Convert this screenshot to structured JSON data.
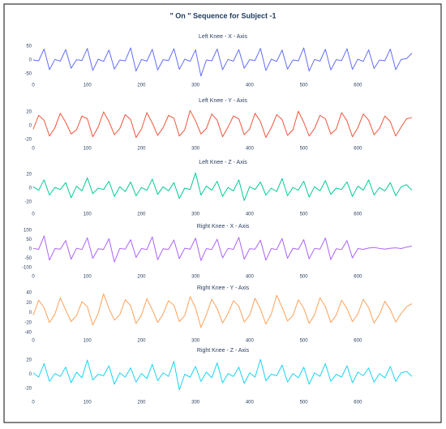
{
  "title": "\" On \" Sequence for Subject -1",
  "chart_data": [
    {
      "type": "line",
      "title": "Left Knee - X - Axis",
      "x": [
        0,
        10,
        20,
        30,
        40,
        50,
        60,
        70,
        80,
        90,
        100,
        110,
        120,
        130,
        140,
        150,
        160,
        170,
        180,
        190,
        200,
        210,
        220,
        230,
        240,
        250,
        260,
        270,
        280,
        290,
        300,
        310,
        320,
        330,
        340,
        350,
        360,
        370,
        380,
        390,
        400,
        410,
        420,
        430,
        440,
        450,
        460,
        470,
        480,
        490,
        500,
        510,
        520,
        530,
        540,
        550,
        560,
        570,
        580,
        590,
        600,
        610,
        620,
        630,
        640,
        650,
        660,
        670,
        680,
        690,
        700
      ],
      "series": [
        {
          "color": "#636efa",
          "values": [
            0,
            -3,
            40,
            -35,
            2,
            -4,
            38,
            -30,
            1,
            -2,
            42,
            -38,
            3,
            -5,
            36,
            -33,
            0,
            -3,
            44,
            -40,
            2,
            -4,
            39,
            -36,
            1,
            -2,
            41,
            -34,
            3,
            -5,
            37,
            -58,
            0,
            -3,
            40,
            -35,
            2,
            -4,
            38,
            -30,
            1,
            -2,
            42,
            -38,
            3,
            -5,
            36,
            -33,
            0,
            -3,
            44,
            -40,
            2,
            -4,
            39,
            -36,
            1,
            -2,
            41,
            -34,
            3,
            -5,
            37,
            -31,
            0,
            -3,
            40,
            -35,
            2,
            5,
            25
          ]
        }
      ],
      "xlim": [
        0,
        700
      ],
      "ylim": [
        -60,
        60
      ],
      "xticks": [
        0,
        100,
        200,
        300,
        400,
        500,
        600
      ],
      "yticks": [
        50,
        0,
        -50
      ]
    },
    {
      "type": "line",
      "title": "Left Knee - Y - Axis",
      "x": [
        0,
        10,
        20,
        30,
        40,
        50,
        60,
        70,
        80,
        90,
        100,
        110,
        120,
        130,
        140,
        150,
        160,
        170,
        180,
        190,
        200,
        210,
        220,
        230,
        240,
        250,
        260,
        270,
        280,
        290,
        300,
        310,
        320,
        330,
        340,
        350,
        360,
        370,
        380,
        390,
        400,
        410,
        420,
        430,
        440,
        450,
        460,
        470,
        480,
        490,
        500,
        510,
        520,
        530,
        540,
        550,
        560,
        570,
        580,
        590,
        600,
        610,
        620,
        630,
        640,
        650,
        660,
        670,
        680,
        690,
        700
      ],
      "series": [
        {
          "color": "#ef553b",
          "values": [
            -5,
            15,
            8,
            -15,
            -3,
            18,
            5,
            -12,
            -6,
            14,
            10,
            -16,
            -2,
            20,
            6,
            -13,
            -4,
            16,
            9,
            -17,
            -5,
            19,
            4,
            -14,
            -3,
            15,
            11,
            -15,
            -6,
            22,
            7,
            -12,
            -4,
            17,
            8,
            -16,
            -2,
            14,
            10,
            -13,
            -5,
            18,
            6,
            -17,
            -3,
            16,
            9,
            -14,
            -6,
            21,
            5,
            -15,
            -4,
            15,
            10,
            -12,
            -5,
            19,
            7,
            -16,
            -3,
            17,
            8,
            -13,
            -4,
            14,
            6,
            -15,
            -2,
            10,
            12
          ]
        }
      ],
      "xlim": [
        0,
        700
      ],
      "ylim": [
        -25,
        25
      ],
      "xticks": [
        0,
        100,
        200,
        300,
        400,
        500,
        600
      ],
      "yticks": [
        20,
        0,
        -20
      ]
    },
    {
      "type": "line",
      "title": "Left Knee - Z - Axis",
      "x": [
        0,
        10,
        20,
        30,
        40,
        50,
        60,
        70,
        80,
        90,
        100,
        110,
        120,
        130,
        140,
        150,
        160,
        170,
        180,
        190,
        200,
        210,
        220,
        230,
        240,
        250,
        260,
        270,
        280,
        290,
        300,
        310,
        320,
        330,
        340,
        350,
        360,
        370,
        380,
        390,
        400,
        410,
        420,
        430,
        440,
        450,
        460,
        470,
        480,
        490,
        500,
        510,
        520,
        530,
        540,
        550,
        560,
        570,
        580,
        590,
        600,
        610,
        620,
        630,
        640,
        650,
        660,
        670,
        680,
        690,
        700
      ],
      "series": [
        {
          "color": "#00cc96",
          "values": [
            2,
            -3,
            12,
            -10,
            1,
            -2,
            8,
            -14,
            3,
            -4,
            15,
            -8,
            0,
            -2,
            10,
            -12,
            2,
            -5,
            9,
            -11,
            1,
            -3,
            13,
            -9,
            2,
            -4,
            8,
            -15,
            0,
            -2,
            22,
            -10,
            3,
            -3,
            10,
            -12,
            1,
            -4,
            12,
            -18,
            2,
            -2,
            9,
            -10,
            0,
            -5,
            14,
            -11,
            1,
            -3,
            10,
            -13,
            2,
            -4,
            11,
            -9,
            0,
            -2,
            9,
            -12,
            3,
            -3,
            12,
            -10,
            1,
            -4,
            8,
            -11,
            2,
            5,
            -3
          ]
        }
      ],
      "xlim": [
        0,
        700
      ],
      "ylim": [
        -25,
        25
      ],
      "xticks": [
        0,
        100,
        200,
        300,
        400,
        500,
        600
      ],
      "yticks": [
        20,
        0,
        -20
      ]
    },
    {
      "type": "line",
      "title": "Right Knee - X - Axis",
      "x": [
        0,
        10,
        20,
        30,
        40,
        50,
        60,
        70,
        80,
        90,
        100,
        110,
        120,
        130,
        140,
        150,
        160,
        170,
        180,
        190,
        200,
        210,
        220,
        230,
        240,
        250,
        260,
        270,
        280,
        290,
        300,
        310,
        320,
        330,
        340,
        350,
        360,
        370,
        380,
        390,
        400,
        410,
        420,
        430,
        440,
        450,
        460,
        470,
        480,
        490,
        500,
        510,
        520,
        530,
        540,
        550,
        560,
        570,
        580,
        590,
        600,
        610,
        620,
        630,
        640,
        650,
        660,
        670,
        680,
        690,
        700
      ],
      "series": [
        {
          "color": "#ab63fa",
          "values": [
            3,
            -2,
            70,
            -60,
            2,
            -1,
            45,
            -55,
            4,
            -3,
            60,
            -50,
            1,
            -2,
            55,
            -70,
            3,
            -1,
            50,
            -45,
            2,
            -3,
            65,
            -58,
            1,
            -2,
            48,
            -52,
            4,
            -1,
            58,
            -62,
            2,
            -3,
            52,
            -48,
            3,
            -2,
            62,
            -55,
            1,
            -1,
            47,
            -60,
            2,
            -3,
            56,
            -50,
            4,
            -2,
            50,
            -53,
            3,
            -1,
            59,
            -57,
            1,
            -3,
            45,
            -48,
            2,
            -2,
            5,
            8,
            3,
            -1,
            4,
            6,
            2,
            10,
            15
          ]
        }
      ],
      "xlim": [
        0,
        700
      ],
      "ylim": [
        -110,
        110
      ],
      "xticks": [
        0,
        100,
        200,
        300,
        400,
        500,
        600
      ],
      "yticks": [
        100,
        50,
        0,
        -50,
        -100
      ]
    },
    {
      "type": "line",
      "title": "Right Knee - Y - Axis",
      "x": [
        0,
        10,
        20,
        30,
        40,
        50,
        60,
        70,
        80,
        90,
        100,
        110,
        120,
        130,
        140,
        150,
        160,
        170,
        180,
        190,
        200,
        210,
        220,
        230,
        240,
        250,
        260,
        270,
        280,
        290,
        300,
        310,
        320,
        330,
        340,
        350,
        360,
        370,
        380,
        390,
        400,
        410,
        420,
        430,
        440,
        450,
        460,
        470,
        480,
        490,
        500,
        510,
        520,
        530,
        540,
        550,
        560,
        570,
        580,
        590,
        600,
        610,
        620,
        630,
        640,
        650,
        660,
        670,
        680,
        690,
        700
      ],
      "series": [
        {
          "color": "#ffa15a",
          "values": [
            -5,
            25,
            10,
            -20,
            -3,
            30,
            5,
            -18,
            -6,
            22,
            12,
            -25,
            -2,
            38,
            8,
            -15,
            -4,
            26,
            14,
            -22,
            -5,
            28,
            6,
            -20,
            -3,
            24,
            15,
            -18,
            -6,
            32,
            10,
            -30,
            -4,
            27,
            8,
            -21,
            -2,
            24,
            13,
            -19,
            -5,
            29,
            7,
            -23,
            -3,
            35,
            11,
            -17,
            -6,
            26,
            9,
            -22,
            -4,
            30,
            12,
            -20,
            -5,
            25,
            8,
            -18,
            -3,
            27,
            10,
            -21,
            -4,
            23,
            6,
            -19,
            -2,
            12,
            18
          ]
        }
      ],
      "xlim": [
        0,
        700
      ],
      "ylim": [
        -45,
        45
      ],
      "xticks": [
        0,
        100,
        200,
        300,
        400,
        500,
        600
      ],
      "yticks": [
        40,
        20,
        0,
        -20,
        -40
      ]
    },
    {
      "type": "line",
      "title": "Right Knee - Z - Axis",
      "x": [
        0,
        10,
        20,
        30,
        40,
        50,
        60,
        70,
        80,
        90,
        100,
        110,
        120,
        130,
        140,
        150,
        160,
        170,
        180,
        190,
        200,
        210,
        220,
        230,
        240,
        250,
        260,
        270,
        280,
        290,
        300,
        310,
        320,
        330,
        340,
        350,
        360,
        370,
        380,
        390,
        400,
        410,
        420,
        430,
        440,
        450,
        460,
        470,
        480,
        490,
        500,
        510,
        520,
        530,
        540,
        550,
        560,
        570,
        580,
        590,
        600,
        610,
        620,
        630,
        640,
        650,
        660,
        670,
        680,
        690,
        700
      ],
      "series": [
        {
          "color": "#19d3f3",
          "values": [
            2,
            -4,
            15,
            -10,
            1,
            -3,
            10,
            -12,
            3,
            -5,
            20,
            -8,
            0,
            -2,
            12,
            -14,
            2,
            -4,
            9,
            -11,
            1,
            -6,
            14,
            -9,
            2,
            -3,
            18,
            -22,
            0,
            -4,
            11,
            -10,
            3,
            -5,
            16,
            -12,
            1,
            -3,
            10,
            -13,
            2,
            -4,
            21,
            -9,
            0,
            -2,
            13,
            -11,
            1,
            -5,
            10,
            -14,
            2,
            -3,
            15,
            -10,
            0,
            -4,
            12,
            -12,
            3,
            -2,
            9,
            -11,
            1,
            -5,
            11,
            -10,
            2,
            4,
            -3
          ]
        }
      ],
      "xlim": [
        0,
        700
      ],
      "ylim": [
        -25,
        25
      ],
      "xticks": [
        0,
        100,
        200,
        300,
        400,
        500,
        600
      ],
      "yticks": [
        20,
        0,
        -20
      ]
    }
  ]
}
